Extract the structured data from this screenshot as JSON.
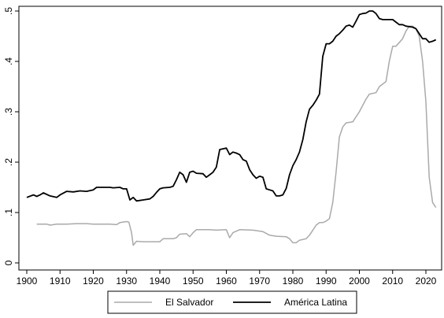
{
  "chart_data": {
    "type": "line",
    "title": "",
    "xlabel": "",
    "ylabel": "",
    "xlim": [
      1900,
      2024
    ],
    "ylim": [
      0,
      0.5
    ],
    "x_ticks": [
      1900,
      1910,
      1920,
      1930,
      1940,
      1950,
      1960,
      1970,
      1980,
      1990,
      2000,
      2010,
      2020
    ],
    "x_tick_labels": [
      "1900",
      "1910",
      "1920",
      "1930",
      "1940",
      "1950",
      "1960",
      "1970",
      "1980",
      "1990",
      "2000",
      "2010",
      "2020"
    ],
    "y_ticks": [
      0,
      0.1,
      0.2,
      0.3,
      0.4,
      0.5
    ],
    "y_tick_labels": [
      "0",
      ".1",
      ".2",
      ".3",
      ".4",
      ".5"
    ],
    "grid": false,
    "legend_position": "bottom",
    "series": [
      {
        "name": "El Salvador",
        "color": "#aaaaaa",
        "points": [
          [
            1903,
            0.077
          ],
          [
            1906,
            0.077
          ],
          [
            1907,
            0.075
          ],
          [
            1909,
            0.077
          ],
          [
            1912,
            0.077
          ],
          [
            1915,
            0.078
          ],
          [
            1918,
            0.078
          ],
          [
            1920,
            0.077
          ],
          [
            1925,
            0.077
          ],
          [
            1927,
            0.076
          ],
          [
            1928,
            0.08
          ],
          [
            1930,
            0.082
          ],
          [
            1930.7,
            0.081
          ],
          [
            1931.5,
            0.06
          ],
          [
            1932,
            0.035
          ],
          [
            1933,
            0.043
          ],
          [
            1935,
            0.042
          ],
          [
            1940,
            0.042
          ],
          [
            1941,
            0.048
          ],
          [
            1944,
            0.048
          ],
          [
            1945,
            0.05
          ],
          [
            1946,
            0.057
          ],
          [
            1948,
            0.058
          ],
          [
            1949,
            0.052
          ],
          [
            1950,
            0.06
          ],
          [
            1951,
            0.066
          ],
          [
            1952,
            0.066
          ],
          [
            1955,
            0.066
          ],
          [
            1957,
            0.065
          ],
          [
            1960,
            0.066
          ],
          [
            1961,
            0.05
          ],
          [
            1962,
            0.06
          ],
          [
            1964,
            0.066
          ],
          [
            1968,
            0.065
          ],
          [
            1971,
            0.062
          ],
          [
            1973,
            0.055
          ],
          [
            1975,
            0.053
          ],
          [
            1978,
            0.052
          ],
          [
            1979,
            0.048
          ],
          [
            1980,
            0.04
          ],
          [
            1981,
            0.04
          ],
          [
            1982,
            0.045
          ],
          [
            1984,
            0.048
          ],
          [
            1985,
            0.055
          ],
          [
            1986,
            0.065
          ],
          [
            1987,
            0.075
          ],
          [
            1988,
            0.08
          ],
          [
            1989,
            0.08
          ],
          [
            1990,
            0.083
          ],
          [
            1991,
            0.088
          ],
          [
            1992,
            0.12
          ],
          [
            1993,
            0.18
          ],
          [
            1994,
            0.25
          ],
          [
            1995,
            0.27
          ],
          [
            1996,
            0.278
          ],
          [
            1998,
            0.28
          ],
          [
            2000,
            0.3
          ],
          [
            2002,
            0.325
          ],
          [
            2003,
            0.335
          ],
          [
            2005,
            0.338
          ],
          [
            2006,
            0.35
          ],
          [
            2008,
            0.36
          ],
          [
            2009,
            0.4
          ],
          [
            2010,
            0.43
          ],
          [
            2011,
            0.43
          ],
          [
            2013,
            0.445
          ],
          [
            2014,
            0.46
          ],
          [
            2015,
            0.47
          ],
          [
            2016,
            0.47
          ],
          [
            2017,
            0.465
          ],
          [
            2018,
            0.45
          ],
          [
            2019,
            0.4
          ],
          [
            2020,
            0.32
          ],
          [
            2021,
            0.17
          ],
          [
            2022,
            0.12
          ],
          [
            2023,
            0.11
          ]
        ]
      },
      {
        "name": "América Latina",
        "color": "#000000",
        "points": [
          [
            1900,
            0.13
          ],
          [
            1902,
            0.135
          ],
          [
            1903,
            0.132
          ],
          [
            1904,
            0.135
          ],
          [
            1905,
            0.139
          ],
          [
            1907,
            0.133
          ],
          [
            1909,
            0.13
          ],
          [
            1910,
            0.135
          ],
          [
            1912,
            0.142
          ],
          [
            1914,
            0.141
          ],
          [
            1916,
            0.143
          ],
          [
            1918,
            0.142
          ],
          [
            1920,
            0.145
          ],
          [
            1921,
            0.15
          ],
          [
            1923,
            0.15
          ],
          [
            1925,
            0.15
          ],
          [
            1926,
            0.149
          ],
          [
            1928,
            0.15
          ],
          [
            1929,
            0.147
          ],
          [
            1930,
            0.147
          ],
          [
            1931,
            0.125
          ],
          [
            1932,
            0.13
          ],
          [
            1933,
            0.123
          ],
          [
            1935,
            0.125
          ],
          [
            1937,
            0.127
          ],
          [
            1938,
            0.132
          ],
          [
            1939,
            0.14
          ],
          [
            1940,
            0.147
          ],
          [
            1941,
            0.149
          ],
          [
            1943,
            0.15
          ],
          [
            1944,
            0.152
          ],
          [
            1945,
            0.165
          ],
          [
            1946,
            0.18
          ],
          [
            1947,
            0.175
          ],
          [
            1948,
            0.16
          ],
          [
            1949,
            0.18
          ],
          [
            1950,
            0.182
          ],
          [
            1951,
            0.178
          ],
          [
            1953,
            0.177
          ],
          [
            1954,
            0.17
          ],
          [
            1955,
            0.175
          ],
          [
            1956,
            0.18
          ],
          [
            1957,
            0.19
          ],
          [
            1958,
            0.225
          ],
          [
            1960,
            0.228
          ],
          [
            1961,
            0.215
          ],
          [
            1962,
            0.22
          ],
          [
            1963,
            0.218
          ],
          [
            1964,
            0.215
          ],
          [
            1965,
            0.205
          ],
          [
            1966,
            0.202
          ],
          [
            1967,
            0.185
          ],
          [
            1968,
            0.175
          ],
          [
            1969,
            0.168
          ],
          [
            1970,
            0.172
          ],
          [
            1971,
            0.17
          ],
          [
            1972,
            0.147
          ],
          [
            1973,
            0.145
          ],
          [
            1974,
            0.143
          ],
          [
            1975,
            0.133
          ],
          [
            1976,
            0.133
          ],
          [
            1977,
            0.135
          ],
          [
            1978,
            0.148
          ],
          [
            1979,
            0.175
          ],
          [
            1980,
            0.193
          ],
          [
            1981,
            0.205
          ],
          [
            1982,
            0.22
          ],
          [
            1983,
            0.245
          ],
          [
            1984,
            0.28
          ],
          [
            1985,
            0.305
          ],
          [
            1986,
            0.313
          ],
          [
            1987,
            0.323
          ],
          [
            1988,
            0.335
          ],
          [
            1989,
            0.41
          ],
          [
            1990,
            0.435
          ],
          [
            1991,
            0.435
          ],
          [
            1992,
            0.44
          ],
          [
            1993,
            0.45
          ],
          [
            1994,
            0.455
          ],
          [
            1995,
            0.462
          ],
          [
            1996,
            0.47
          ],
          [
            1997,
            0.472
          ],
          [
            1998,
            0.468
          ],
          [
            1999,
            0.48
          ],
          [
            2000,
            0.493
          ],
          [
            2001,
            0.495
          ],
          [
            2002,
            0.496
          ],
          [
            2003,
            0.5
          ],
          [
            2004,
            0.5
          ],
          [
            2005,
            0.495
          ],
          [
            2006,
            0.485
          ],
          [
            2007,
            0.483
          ],
          [
            2009,
            0.483
          ],
          [
            2010,
            0.483
          ],
          [
            2011,
            0.478
          ],
          [
            2012,
            0.473
          ],
          [
            2013,
            0.473
          ],
          [
            2014,
            0.47
          ],
          [
            2016,
            0.468
          ],
          [
            2017,
            0.465
          ],
          [
            2018,
            0.455
          ],
          [
            2019,
            0.445
          ],
          [
            2020,
            0.445
          ],
          [
            2021,
            0.438
          ],
          [
            2022,
            0.44
          ],
          [
            2023,
            0.443
          ]
        ]
      }
    ]
  }
}
